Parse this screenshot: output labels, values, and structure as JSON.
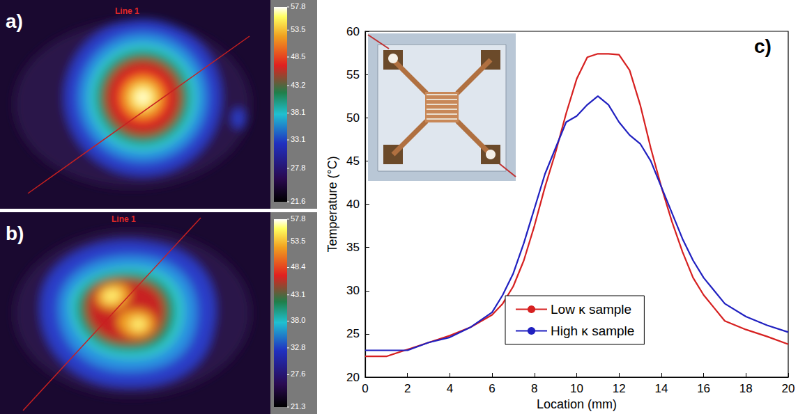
{
  "panels": [
    {
      "label": "a)",
      "line_label": "Line 1",
      "colorbar": {
        "range": [
          21.6,
          57.8
        ],
        "ticks": [
          57.8,
          53.5,
          48.5,
          43.2,
          38.1,
          33.1,
          27.8,
          21.6
        ]
      }
    },
    {
      "label": "b)",
      "line_label": "Line 1",
      "colorbar": {
        "range": [
          21.3,
          57.8
        ],
        "ticks": [
          57.8,
          53.5,
          48.4,
          43.1,
          {
            "value": 38,
            "label": "38.0"
          },
          32.8,
          27.6,
          21.3
        ]
      }
    }
  ],
  "chart_data": {
    "type": "line",
    "label": "c)",
    "x_label": "Location (mm)",
    "y_label": "Temperature (°C)",
    "xlim": [
      0,
      20
    ],
    "xticks": [
      0,
      2,
      4,
      6,
      8,
      10,
      12,
      14,
      16,
      18,
      20
    ],
    "ylim": [
      20,
      60
    ],
    "yticks": [
      20,
      25,
      30,
      35,
      40,
      45,
      50,
      55,
      60
    ],
    "grid": false,
    "legend": "lower right",
    "x": [
      0,
      1,
      2,
      3,
      4,
      5,
      6,
      6.5,
      7,
      7.5,
      8,
      8.5,
      9,
      9.5,
      10,
      10.5,
      11,
      11.5,
      12,
      12.5,
      13,
      13.5,
      14,
      14.5,
      15,
      15.5,
      16,
      16.5,
      17,
      18,
      19,
      20
    ],
    "series": [
      {
        "name": "Low κ sample",
        "color": "#d62020",
        "values": [
          22.4,
          22.4,
          23.2,
          24.0,
          24.8,
          25.8,
          27.2,
          28.5,
          30.5,
          33.5,
          37.5,
          42,
          46,
          50.5,
          54.5,
          57,
          57.4,
          57.4,
          57.3,
          55.5,
          51.5,
          46.5,
          42,
          38,
          34.5,
          31.5,
          29.5,
          28,
          26.5,
          25.5,
          24.7,
          23.8
        ]
      },
      {
        "name": "High κ sample",
        "color": "#2020c0",
        "values": [
          23.1,
          23.1,
          23.1,
          24.0,
          24.6,
          25.8,
          27.5,
          29.5,
          32,
          35.5,
          39.5,
          43.5,
          46.5,
          49.5,
          50.2,
          51.5,
          52.5,
          51.5,
          49.5,
          48,
          47,
          45,
          42,
          39,
          36,
          33.5,
          31.5,
          30,
          28.5,
          27,
          26,
          25.2
        ]
      }
    ]
  }
}
